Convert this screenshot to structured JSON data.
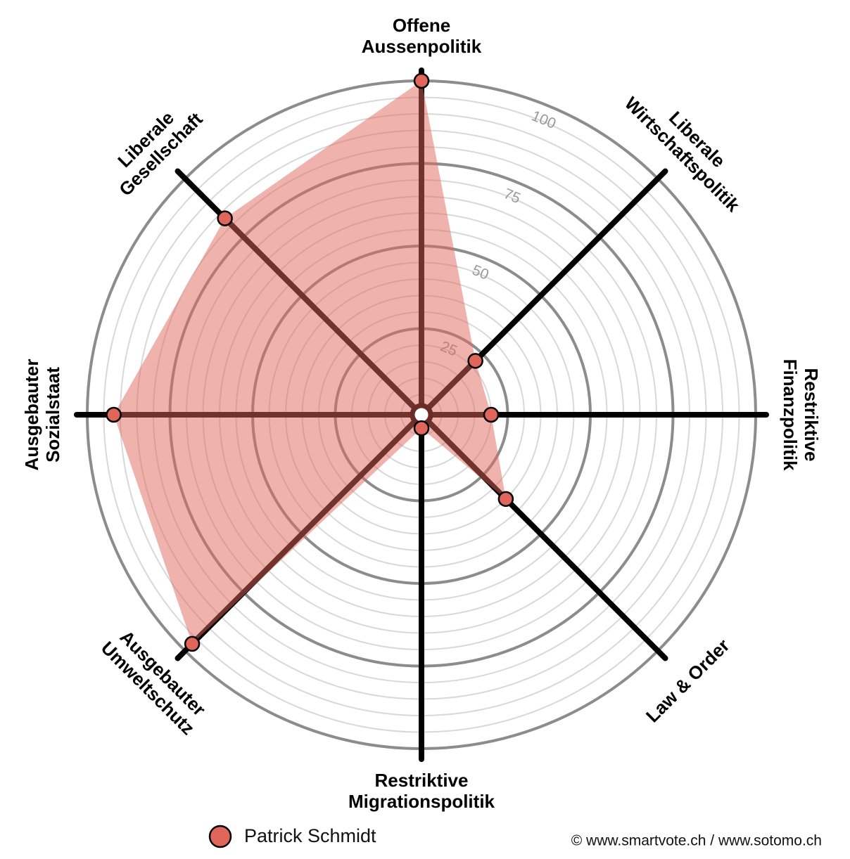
{
  "chart_data": {
    "type": "radar",
    "categories": [
      [
        "Offene",
        "Aussenpolitik"
      ],
      [
        "Liberale",
        "Wirtschaftspolitik"
      ],
      [
        "Restriktive",
        "Finanzpolitik"
      ],
      [
        "Law & Order"
      ],
      [
        "Restriktive",
        "Migrationspolitik"
      ],
      [
        "Ausgebauter",
        "Umweltschutz"
      ],
      [
        "Ausgebauter",
        "Sozialstaat"
      ],
      [
        "Liberale",
        "Gesellschaft"
      ]
    ],
    "series": [
      {
        "name": "Patrick Schmidt",
        "color": "#e0655a",
        "values": [
          100,
          22,
          20,
          35,
          3,
          97,
          92,
          83
        ]
      }
    ],
    "ylim": [
      0,
      100
    ],
    "yticks": [
      25,
      50,
      75,
      100
    ],
    "minor_step": 5,
    "credit": "© www.smartvote.ch / www.sotomo.ch"
  }
}
